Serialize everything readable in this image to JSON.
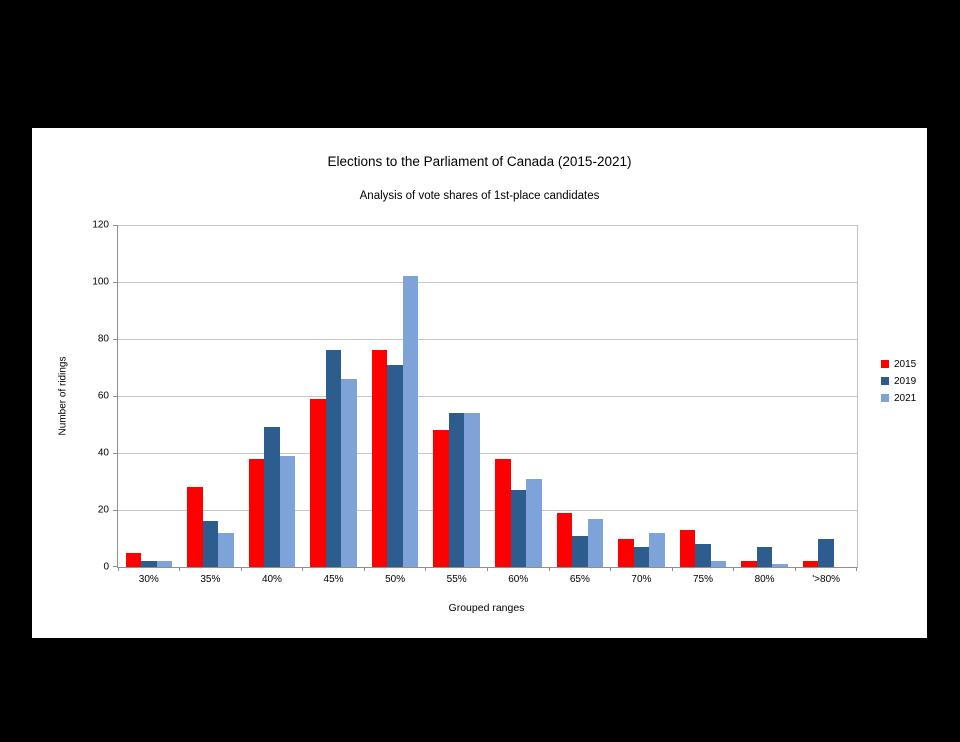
{
  "header": {
    "title": "Elections to the Parliament of Canada (2015-2021)",
    "subtitle": "Analysis of vote shares of 1st-place candidates"
  },
  "chart_data": {
    "type": "bar",
    "title": "Elections to the Parliament of Canada (2015-2021)",
    "subtitle": "Analysis of vote shares of 1st-place candidates",
    "xlabel": "Grouped ranges",
    "ylabel": "Number of ridings",
    "ylim": [
      0,
      120
    ],
    "yticks": [
      0,
      20,
      40,
      60,
      80,
      100,
      120
    ],
    "grid": true,
    "legend_position": "right",
    "categories": [
      "30%",
      "35%",
      "40%",
      "45%",
      "50%",
      "55%",
      "60%",
      "65%",
      "70%",
      "75%",
      "80%",
      "'>80%"
    ],
    "series": [
      {
        "name": "2015",
        "color": "#ff0000",
        "values": [
          5,
          28,
          38,
          59,
          76,
          48,
          38,
          19,
          10,
          13,
          2,
          2
        ]
      },
      {
        "name": "2019",
        "color": "#2d5c8e",
        "values": [
          2,
          16,
          49,
          76,
          71,
          54,
          27,
          11,
          7,
          8,
          7,
          10
        ]
      },
      {
        "name": "2021",
        "color": "#7da3d8",
        "values": [
          2,
          12,
          39,
          66,
          102,
          54,
          31,
          17,
          12,
          2,
          1,
          0
        ]
      }
    ],
    "colors": {
      "background": "#000000",
      "panel": "#ffffff",
      "gridline": "#c6c6c6",
      "axis": "#8f8f8f",
      "text": "#000000"
    }
  }
}
